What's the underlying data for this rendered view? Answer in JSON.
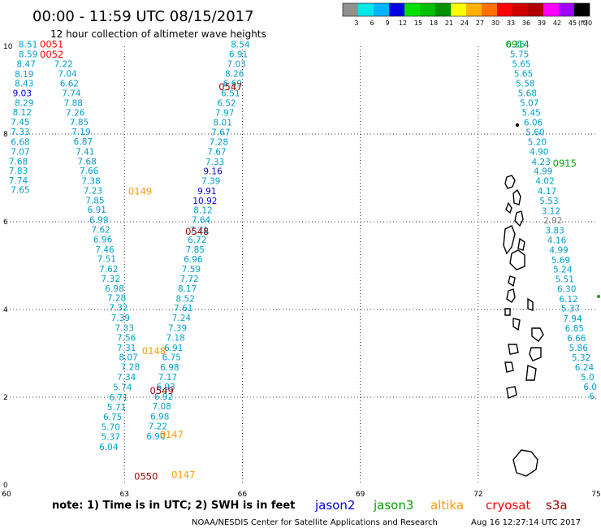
{
  "title": "00:00 - 11:59 UTC 08/15/2017",
  "subtitle": "12 hour collection of altimeter wave heights",
  "color_scale": {
    "unit_label": "(ft)",
    "ticks": [
      "3",
      "6",
      "9",
      "12",
      "15",
      "18",
      "21",
      "24",
      "27",
      "30",
      "33",
      "36",
      "39",
      "42",
      "45",
      "70"
    ],
    "colors": [
      "#909090",
      "#00e8e8",
      "#00b4ff",
      "#0000e0",
      "#00e000",
      "#00c000",
      "#009000",
      "#ffff00",
      "#ffb000",
      "#ff7000",
      "#ff0000",
      "#d00000",
      "#b00000",
      "#ff00ff",
      "#a000ff",
      "#000000"
    ]
  },
  "axes": {
    "x_ticks": [
      "60",
      "63",
      "66",
      "69",
      "72",
      "75"
    ],
    "y_ticks": [
      "0",
      "2",
      "4",
      "6",
      "8",
      "10"
    ]
  },
  "note": "note: 1) Time is in UTC; 2) SWH is in feet",
  "legend": [
    {
      "name": "jason2",
      "color": "#0000e0"
    },
    {
      "name": "jason3",
      "color": "#00a000"
    },
    {
      "name": "altika",
      "color": "#ff9900"
    },
    {
      "name": "cryosat",
      "color": "#ff0000"
    },
    {
      "name": "s3a",
      "color": "#990000"
    }
  ],
  "credit": "NOAA/NESDIS Center for Satellite Applications and Research",
  "generated": "Aug 16 12:27:14 UTC 2017",
  "chart_data": {
    "type": "scatter",
    "title": "00:00 - 11:59 UTC 08/15/2017",
    "xlabel": "",
    "ylabel": "",
    "xlim": [
      60,
      75
    ],
    "ylim": [
      0,
      10
    ],
    "grid": true,
    "x_ticks": [
      60,
      63,
      66,
      69,
      72,
      75
    ],
    "y_ticks": [
      0,
      2,
      4,
      6,
      8,
      10
    ],
    "value_color": "#00a0d0",
    "track_labels": [
      {
        "text": "0051",
        "lon": 61.15,
        "lat": 9.97,
        "color": "#ff0000"
      },
      {
        "text": "0052",
        "lon": 61.15,
        "lat": 9.74,
        "color": "#ff0000"
      },
      {
        "text": "0547",
        "lon": 65.7,
        "lat": 9.0,
        "color": "#990000"
      },
      {
        "text": "0149",
        "lon": 63.4,
        "lat": 6.62,
        "color": "#ff9900"
      },
      {
        "text": "0548",
        "lon": 64.85,
        "lat": 5.7,
        "color": "#990000"
      },
      {
        "text": "0148",
        "lon": 63.75,
        "lat": 2.98,
        "color": "#ff9900"
      },
      {
        "text": "0549",
        "lon": 63.95,
        "lat": 2.07,
        "color": "#990000"
      },
      {
        "text": "0147",
        "lon": 64.2,
        "lat": 1.07,
        "color": "#ff9900"
      },
      {
        "text": "0147",
        "lon": 64.5,
        "lat": 0.16,
        "color": "#ff9900"
      },
      {
        "text": "0550",
        "lon": 63.55,
        "lat": 0.12,
        "color": "#990000"
      },
      {
        "text": "0914",
        "lon": 73.0,
        "lat": 9.97,
        "color": "#00a000"
      },
      {
        "text": "0915",
        "lon": 74.2,
        "lat": 7.26,
        "color": "#00a000"
      }
    ],
    "values": [
      {
        "text": "8.51",
        "lon": 60.55,
        "lat": 9.97
      },
      {
        "text": "8.59",
        "lon": 60.55,
        "lat": 9.75
      },
      {
        "text": "8.47",
        "lon": 60.5,
        "lat": 9.53
      },
      {
        "text": "8.19",
        "lon": 60.45,
        "lat": 9.3
      },
      {
        "text": "8.43",
        "lon": 60.45,
        "lat": 9.08
      },
      {
        "text": "9.03",
        "lon": 60.4,
        "lat": 8.86,
        "color": "#0000e0"
      },
      {
        "text": "8.29",
        "lon": 60.45,
        "lat": 8.64
      },
      {
        "text": "8.12",
        "lon": 60.4,
        "lat": 8.43
      },
      {
        "text": "7.45",
        "lon": 60.35,
        "lat": 8.2
      },
      {
        "text": "7.33",
        "lon": 60.35,
        "lat": 7.98
      },
      {
        "text": "6.68",
        "lon": 60.35,
        "lat": 7.75
      },
      {
        "text": "7.07",
        "lon": 60.35,
        "lat": 7.53
      },
      {
        "text": "7.68",
        "lon": 60.3,
        "lat": 7.31
      },
      {
        "text": "7.83",
        "lon": 60.3,
        "lat": 7.09
      },
      {
        "text": "7.74",
        "lon": 60.3,
        "lat": 6.87
      },
      {
        "text": "7.65",
        "lon": 60.35,
        "lat": 6.66
      },
      {
        "text": "7.22",
        "lon": 61.45,
        "lat": 9.53
      },
      {
        "text": "7.04",
        "lon": 61.55,
        "lat": 9.31
      },
      {
        "text": "6.62",
        "lon": 61.6,
        "lat": 9.08
      },
      {
        "text": "7.74",
        "lon": 61.65,
        "lat": 8.86
      },
      {
        "text": "7.88",
        "lon": 61.7,
        "lat": 8.64
      },
      {
        "text": "7.26",
        "lon": 61.75,
        "lat": 8.42
      },
      {
        "text": "7.85",
        "lon": 61.85,
        "lat": 8.2
      },
      {
        "text": "7.19",
        "lon": 61.9,
        "lat": 7.98
      },
      {
        "text": "6.87",
        "lon": 61.95,
        "lat": 7.76
      },
      {
        "text": "7.41",
        "lon": 62.0,
        "lat": 7.53
      },
      {
        "text": "7.68",
        "lon": 62.05,
        "lat": 7.31
      },
      {
        "text": "7.66",
        "lon": 62.1,
        "lat": 7.09
      },
      {
        "text": "7.38",
        "lon": 62.15,
        "lat": 6.86
      },
      {
        "text": "7.23",
        "lon": 62.2,
        "lat": 6.64
      },
      {
        "text": "7.85",
        "lon": 62.25,
        "lat": 6.42
      },
      {
        "text": "6.91",
        "lon": 62.3,
        "lat": 6.2
      },
      {
        "text": "6.99",
        "lon": 62.35,
        "lat": 5.97
      },
      {
        "text": "7.62",
        "lon": 62.4,
        "lat": 5.75
      },
      {
        "text": "6.96",
        "lon": 62.45,
        "lat": 5.53
      },
      {
        "text": "7.46",
        "lon": 62.5,
        "lat": 5.3
      },
      {
        "text": "7.51",
        "lon": 62.55,
        "lat": 5.08
      },
      {
        "text": "7.62",
        "lon": 62.6,
        "lat": 4.85
      },
      {
        "text": "7.32",
        "lon": 62.65,
        "lat": 4.63
      },
      {
        "text": "6.98",
        "lon": 62.75,
        "lat": 4.41
      },
      {
        "text": "7.28",
        "lon": 62.8,
        "lat": 4.19
      },
      {
        "text": "7.32",
        "lon": 62.85,
        "lat": 3.97
      },
      {
        "text": "7.39",
        "lon": 62.9,
        "lat": 3.74
      },
      {
        "text": "7.33",
        "lon": 63.0,
        "lat": 3.51
      },
      {
        "text": "7.56",
        "lon": 63.05,
        "lat": 3.29
      },
      {
        "text": "7.31",
        "lon": 63.05,
        "lat": 3.06
      },
      {
        "text": "8.07",
        "lon": 63.1,
        "lat": 2.84
      },
      {
        "text": "7.28",
        "lon": 63.15,
        "lat": 2.62
      },
      {
        "text": "7.34",
        "lon": 63.05,
        "lat": 2.39
      },
      {
        "text": "5.74",
        "lon": 62.95,
        "lat": 2.16
      },
      {
        "text": "6.71",
        "lon": 62.85,
        "lat": 1.93
      },
      {
        "text": "5.71",
        "lon": 62.8,
        "lat": 1.7
      },
      {
        "text": "6.75",
        "lon": 62.7,
        "lat": 1.48
      },
      {
        "text": "5.70",
        "lon": 62.65,
        "lat": 1.25
      },
      {
        "text": "5.37",
        "lon": 62.65,
        "lat": 1.03
      },
      {
        "text": "6.04",
        "lon": 62.6,
        "lat": 0.8
      },
      {
        "text": "8.54",
        "lon": 65.95,
        "lat": 9.97
      },
      {
        "text": "6.91",
        "lon": 65.9,
        "lat": 9.75
      },
      {
        "text": "7.03",
        "lon": 65.85,
        "lat": 9.53
      },
      {
        "text": "8.26",
        "lon": 65.8,
        "lat": 9.31
      },
      {
        "text": "6.69",
        "lon": 65.75,
        "lat": 9.08
      },
      {
        "text": "6.51",
        "lon": 65.7,
        "lat": 8.86
      },
      {
        "text": "6.52",
        "lon": 65.6,
        "lat": 8.64
      },
      {
        "text": "7.97",
        "lon": 65.55,
        "lat": 8.42
      },
      {
        "text": "8.01",
        "lon": 65.5,
        "lat": 8.19
      },
      {
        "text": "7.67",
        "lon": 65.45,
        "lat": 7.97
      },
      {
        "text": "7.28",
        "lon": 65.4,
        "lat": 7.75
      },
      {
        "text": "7.67",
        "lon": 65.35,
        "lat": 7.53
      },
      {
        "text": "7.33",
        "lon": 65.3,
        "lat": 7.3
      },
      {
        "text": "9.16",
        "lon": 65.25,
        "lat": 7.08,
        "color": "#0000e0"
      },
      {
        "text": "7.39",
        "lon": 65.2,
        "lat": 6.86
      },
      {
        "text": "9.91",
        "lon": 65.1,
        "lat": 6.63,
        "color": "#0000e0"
      },
      {
        "text": "10.92",
        "lon": 65.05,
        "lat": 6.41,
        "color": "#0000e0"
      },
      {
        "text": "8.12",
        "lon": 65.0,
        "lat": 6.19
      },
      {
        "text": "7.64",
        "lon": 64.95,
        "lat": 5.97
      },
      {
        "text": "7.71",
        "lon": 64.9,
        "lat": 5.74
      },
      {
        "text": "6.72",
        "lon": 64.85,
        "lat": 5.52
      },
      {
        "text": "7.85",
        "lon": 64.8,
        "lat": 5.3
      },
      {
        "text": "6.96",
        "lon": 64.75,
        "lat": 5.07
      },
      {
        "text": "7.59",
        "lon": 64.7,
        "lat": 4.85
      },
      {
        "text": "7.72",
        "lon": 64.65,
        "lat": 4.63
      },
      {
        "text": "8.17",
        "lon": 64.6,
        "lat": 4.41
      },
      {
        "text": "8.52",
        "lon": 64.55,
        "lat": 4.18
      },
      {
        "text": "7.61",
        "lon": 64.5,
        "lat": 3.96
      },
      {
        "text": "7.24",
        "lon": 64.45,
        "lat": 3.74
      },
      {
        "text": "7.39",
        "lon": 64.35,
        "lat": 3.51
      },
      {
        "text": "7.18",
        "lon": 64.3,
        "lat": 3.29
      },
      {
        "text": "6.91",
        "lon": 64.25,
        "lat": 3.06
      },
      {
        "text": "6.75",
        "lon": 64.2,
        "lat": 2.84
      },
      {
        "text": "6.98",
        "lon": 64.15,
        "lat": 2.61
      },
      {
        "text": "7.17",
        "lon": 64.1,
        "lat": 2.39
      },
      {
        "text": "6.93",
        "lon": 64.05,
        "lat": 2.17
      },
      {
        "text": "6.92",
        "lon": 64.0,
        "lat": 1.94
      },
      {
        "text": "7.08",
        "lon": 63.95,
        "lat": 1.72
      },
      {
        "text": "6.98",
        "lon": 63.9,
        "lat": 1.49
      },
      {
        "text": "7.22",
        "lon": 63.85,
        "lat": 1.27
      },
      {
        "text": "6.90",
        "lon": 63.8,
        "lat": 1.04
      },
      {
        "text": "6.36",
        "lon": 72.95,
        "lat": 9.97
      },
      {
        "text": "5.75",
        "lon": 73.05,
        "lat": 9.75
      },
      {
        "text": "5.65",
        "lon": 73.1,
        "lat": 9.53
      },
      {
        "text": "5.65",
        "lon": 73.15,
        "lat": 9.31
      },
      {
        "text": "5.58",
        "lon": 73.2,
        "lat": 9.08
      },
      {
        "text": "5.68",
        "lon": 73.25,
        "lat": 8.86
      },
      {
        "text": "5.07",
        "lon": 73.3,
        "lat": 8.64
      },
      {
        "text": "5.45",
        "lon": 73.35,
        "lat": 8.42
      },
      {
        "text": "6.06",
        "lon": 73.4,
        "lat": 8.19
      },
      {
        "text": "5.60",
        "lon": 73.45,
        "lat": 7.97
      },
      {
        "text": "5.20",
        "lon": 73.5,
        "lat": 7.75
      },
      {
        "text": "4.90",
        "lon": 73.55,
        "lat": 7.53
      },
      {
        "text": "4.23",
        "lon": 73.6,
        "lat": 7.3
      },
      {
        "text": "4.99",
        "lon": 73.65,
        "lat": 7.08
      },
      {
        "text": "4.02",
        "lon": 73.7,
        "lat": 6.86
      },
      {
        "text": "4.17",
        "lon": 73.75,
        "lat": 6.63
      },
      {
        "text": "5.53",
        "lon": 73.8,
        "lat": 6.41
      },
      {
        "text": "3.12",
        "lon": 73.85,
        "lat": 6.18
      },
      {
        "text": "2.92",
        "lon": 73.9,
        "lat": 5.96,
        "color": "#808080"
      },
      {
        "text": "3.83",
        "lon": 73.95,
        "lat": 5.73
      },
      {
        "text": "4.16",
        "lon": 74.0,
        "lat": 5.51
      },
      {
        "text": "4.99",
        "lon": 74.05,
        "lat": 5.29
      },
      {
        "text": "5.69",
        "lon": 74.1,
        "lat": 5.06
      },
      {
        "text": "5.24",
        "lon": 74.15,
        "lat": 4.84
      },
      {
        "text": "5.51",
        "lon": 74.2,
        "lat": 4.62
      },
      {
        "text": "6.30",
        "lon": 74.25,
        "lat": 4.4
      },
      {
        "text": "6.12",
        "lon": 74.3,
        "lat": 4.17
      },
      {
        "text": "5.37",
        "lon": 74.35,
        "lat": 3.95
      },
      {
        "text": "7.94",
        "lon": 74.4,
        "lat": 3.72
      },
      {
        "text": "6.85",
        "lon": 74.45,
        "lat": 3.5
      },
      {
        "text": "6.66",
        "lon": 74.5,
        "lat": 3.28
      },
      {
        "text": "5.86",
        "lon": 74.55,
        "lat": 3.06
      },
      {
        "text": "5.32",
        "lon": 74.62,
        "lat": 2.83
      },
      {
        "text": "6.24",
        "lon": 74.7,
        "lat": 2.61
      },
      {
        "text": "5.0",
        "lon": 74.78,
        "lat": 2.39
      },
      {
        "text": "6.0",
        "lon": 74.85,
        "lat": 2.17
      },
      {
        "text": "6.",
        "lon": 74.92,
        "lat": 1.95
      }
    ]
  }
}
